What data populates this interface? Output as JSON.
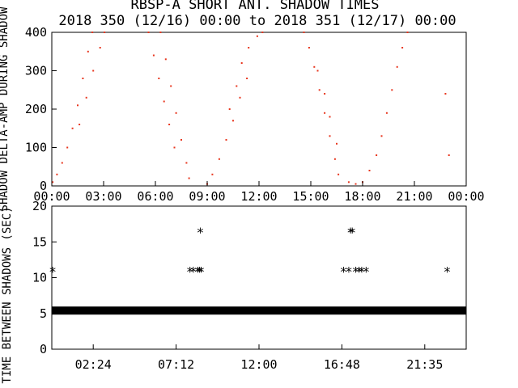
{
  "title": "RBSP-A SHORT ANT. SHADOW TIMES",
  "subtitle": "2018 350 (12/16) 00:00 to 2018 351 (12/17) 00:00",
  "chart_data": [
    {
      "type": "scatter",
      "ylabel": "SHADOW DELTA-AMP DURING SHADOW",
      "xlim": [
        0,
        24
      ],
      "ylim": [
        0,
        400
      ],
      "x_tick_labels": [
        "00:00",
        "03:00",
        "06:00",
        "09:00",
        "12:00",
        "15:00",
        "18:00",
        "21:00",
        "00:00"
      ],
      "y_tick_labels": [
        "0",
        "100",
        "200",
        "300",
        "400"
      ],
      "marker_color": "#e8361e",
      "series": [
        {
          "values": [
            {
              "x": 0.05,
              "y": 10
            },
            {
              "x": 0.3,
              "y": 30
            },
            {
              "x": 0.6,
              "y": 60
            },
            {
              "x": 0.9,
              "y": 100
            },
            {
              "x": 1.2,
              "y": 150
            },
            {
              "x": 1.5,
              "y": 210
            },
            {
              "x": 1.8,
              "y": 280
            },
            {
              "x": 2.1,
              "y": 350
            },
            {
              "x": 2.35,
              "y": 400
            },
            {
              "x": 1.6,
              "y": 160
            },
            {
              "x": 2.0,
              "y": 230
            },
            {
              "x": 2.4,
              "y": 300
            },
            {
              "x": 2.8,
              "y": 360
            },
            {
              "x": 3.05,
              "y": 400
            },
            {
              "x": 5.6,
              "y": 400
            },
            {
              "x": 5.9,
              "y": 340
            },
            {
              "x": 6.2,
              "y": 280
            },
            {
              "x": 6.5,
              "y": 220
            },
            {
              "x": 6.8,
              "y": 160
            },
            {
              "x": 7.1,
              "y": 100
            },
            {
              "x": 6.3,
              "y": 400
            },
            {
              "x": 6.6,
              "y": 330
            },
            {
              "x": 6.9,
              "y": 260
            },
            {
              "x": 7.2,
              "y": 190
            },
            {
              "x": 7.5,
              "y": 120
            },
            {
              "x": 7.8,
              "y": 60
            },
            {
              "x": 7.95,
              "y": 20
            },
            {
              "x": 9.0,
              "y": 5
            },
            {
              "x": 9.3,
              "y": 30
            },
            {
              "x": 9.7,
              "y": 70
            },
            {
              "x": 10.1,
              "y": 120
            },
            {
              "x": 10.5,
              "y": 170
            },
            {
              "x": 10.9,
              "y": 230
            },
            {
              "x": 11.3,
              "y": 280
            },
            {
              "x": 10.3,
              "y": 200
            },
            {
              "x": 10.7,
              "y": 260
            },
            {
              "x": 11.0,
              "y": 320
            },
            {
              "x": 11.4,
              "y": 360
            },
            {
              "x": 11.9,
              "y": 390
            },
            {
              "x": 12.2,
              "y": 400
            },
            {
              "x": 14.6,
              "y": 400
            },
            {
              "x": 14.9,
              "y": 360
            },
            {
              "x": 15.2,
              "y": 310
            },
            {
              "x": 15.5,
              "y": 250
            },
            {
              "x": 15.8,
              "y": 190
            },
            {
              "x": 16.1,
              "y": 130
            },
            {
              "x": 16.4,
              "y": 70
            },
            {
              "x": 16.6,
              "y": 30
            },
            {
              "x": 15.4,
              "y": 300
            },
            {
              "x": 15.8,
              "y": 240
            },
            {
              "x": 16.1,
              "y": 180
            },
            {
              "x": 16.5,
              "y": 110
            },
            {
              "x": 17.2,
              "y": 10
            },
            {
              "x": 17.6,
              "y": 5
            },
            {
              "x": 18.0,
              "y": 10
            },
            {
              "x": 18.4,
              "y": 40
            },
            {
              "x": 18.8,
              "y": 80
            },
            {
              "x": 19.1,
              "y": 130
            },
            {
              "x": 19.4,
              "y": 190
            },
            {
              "x": 19.7,
              "y": 250
            },
            {
              "x": 20.0,
              "y": 310
            },
            {
              "x": 20.3,
              "y": 360
            },
            {
              "x": 20.6,
              "y": 400
            },
            {
              "x": 22.8,
              "y": 240
            },
            {
              "x": 23.0,
              "y": 80
            }
          ]
        }
      ]
    },
    {
      "type": "scatter",
      "ylabel": "TIME BETWEEN SHADOWS (SEC)",
      "xlim": [
        0,
        24
      ],
      "ylim": [
        0,
        20
      ],
      "x_tick_labels": [
        "02:24",
        "07:12",
        "12:00",
        "16:48",
        "21:35"
      ],
      "y_tick_labels": [
        "0",
        "5",
        "10",
        "15",
        "20"
      ],
      "marker_color": "#000000",
      "baseline": {
        "y": 5.4,
        "from": 0,
        "to": 24
      },
      "series": [
        {
          "values": [
            {
              "x": 0.05,
              "y": 11
            },
            {
              "x": 8.0,
              "y": 11
            },
            {
              "x": 8.2,
              "y": 11
            },
            {
              "x": 8.45,
              "y": 11
            },
            {
              "x": 8.55,
              "y": 11
            },
            {
              "x": 8.65,
              "y": 11
            },
            {
              "x": 8.6,
              "y": 16.5
            },
            {
              "x": 16.9,
              "y": 11
            },
            {
              "x": 17.2,
              "y": 11
            },
            {
              "x": 17.6,
              "y": 11
            },
            {
              "x": 17.8,
              "y": 11
            },
            {
              "x": 17.95,
              "y": 11
            },
            {
              "x": 18.2,
              "y": 11
            },
            {
              "x": 17.3,
              "y": 16.5
            },
            {
              "x": 17.4,
              "y": 16.5
            },
            {
              "x": 22.9,
              "y": 11
            }
          ]
        }
      ]
    }
  ]
}
